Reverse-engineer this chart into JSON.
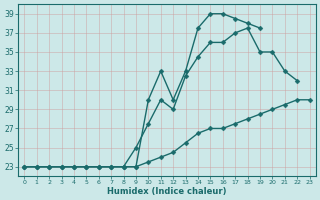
{
  "xlabel": "Humidex (Indice chaleur)",
  "background_color": "#cce8e8",
  "grid_color": "#b0cccc",
  "line_color": "#1a6b6b",
  "xlim": [
    -0.5,
    23.5
  ],
  "ylim": [
    22.0,
    40.0
  ],
  "yticks": [
    23,
    25,
    27,
    29,
    31,
    33,
    35,
    37,
    39
  ],
  "xticks": [
    0,
    1,
    2,
    3,
    4,
    5,
    6,
    7,
    8,
    9,
    10,
    11,
    12,
    13,
    14,
    15,
    16,
    17,
    18,
    19,
    20,
    21,
    22,
    23
  ],
  "line1_x": [
    0,
    1,
    2,
    3,
    4,
    5,
    6,
    7,
    8,
    9,
    10,
    11,
    12,
    13,
    14,
    15,
    16,
    17,
    18,
    19
  ],
  "line1_y": [
    23,
    23,
    23,
    23,
    23,
    23,
    23,
    23,
    23,
    23,
    30,
    33,
    30,
    33,
    37.5,
    39,
    39,
    38.5,
    38,
    37.5
  ],
  "line2_x": [
    0,
    1,
    2,
    3,
    4,
    5,
    6,
    7,
    8,
    9,
    10,
    11,
    12,
    13,
    14,
    15,
    16,
    17,
    18,
    19,
    20,
    21,
    22
  ],
  "line2_y": [
    23,
    23,
    23,
    23,
    23,
    23,
    23,
    23,
    23,
    25,
    27.5,
    30,
    29,
    32.5,
    34.5,
    36,
    36,
    37,
    37.5,
    35,
    35,
    33,
    32
  ],
  "line3_x": [
    0,
    1,
    2,
    3,
    4,
    5,
    6,
    7,
    8,
    9,
    10,
    11,
    12,
    13,
    14,
    15,
    16,
    17,
    18,
    19,
    20,
    21,
    22,
    23
  ],
  "line3_y": [
    23,
    23,
    23,
    23,
    23,
    23,
    23,
    23,
    23,
    23,
    23.5,
    24,
    24.5,
    25.5,
    26.5,
    27,
    27,
    27.5,
    28,
    28.5,
    29,
    29.5,
    30,
    30
  ]
}
